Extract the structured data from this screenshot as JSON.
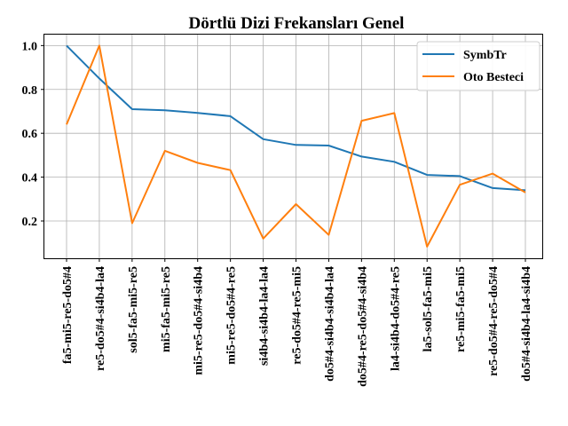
{
  "chart_data": {
    "type": "line",
    "title": "Dörtlü Dizi Frekansları Genel",
    "xlabel": "",
    "ylabel": "",
    "categories": [
      "fa5-mi5-re5-do5#4",
      "re5-do5#4-si4b4-la4",
      "sol5-fa5-mi5-re5",
      "mi5-fa5-mi5-re5",
      "mi5-re5-do5#4-si4b4",
      "mi5-re5-do5#4-re5",
      "si4b4-si4b4-la4-la4",
      "re5-do5#4-re5-mi5",
      "do5#4-si4b4-si4b4-la4",
      "do5#4-re5-do5#4-si4b4",
      "la4-si4b4-do5#4-re5",
      "la5-sol5-fa5-mi5",
      "re5-mi5-fa5-mi5",
      "re5-do5#4-re5-do5#4",
      "do5#4-si4b4-la4-si4b4"
    ],
    "series": [
      {
        "name": "SymbTr",
        "color": "#1f77b4",
        "values": [
          1.0,
          0.85,
          0.71,
          0.705,
          0.693,
          0.678,
          0.573,
          0.547,
          0.544,
          0.494,
          0.47,
          0.41,
          0.405,
          0.35,
          0.34
        ]
      },
      {
        "name": "Oto Besteci",
        "color": "#ff7f0e",
        "values": [
          0.64,
          1.0,
          0.19,
          0.52,
          0.465,
          0.432,
          0.12,
          0.277,
          0.137,
          0.657,
          0.692,
          0.083,
          0.365,
          0.416,
          0.33
        ]
      }
    ],
    "ylim": [
      0.03,
      1.05
    ],
    "yticks": [
      "0.2",
      "0.4",
      "0.6",
      "0.8",
      "1.0"
    ],
    "grid": true,
    "legend_position": "top-right"
  }
}
